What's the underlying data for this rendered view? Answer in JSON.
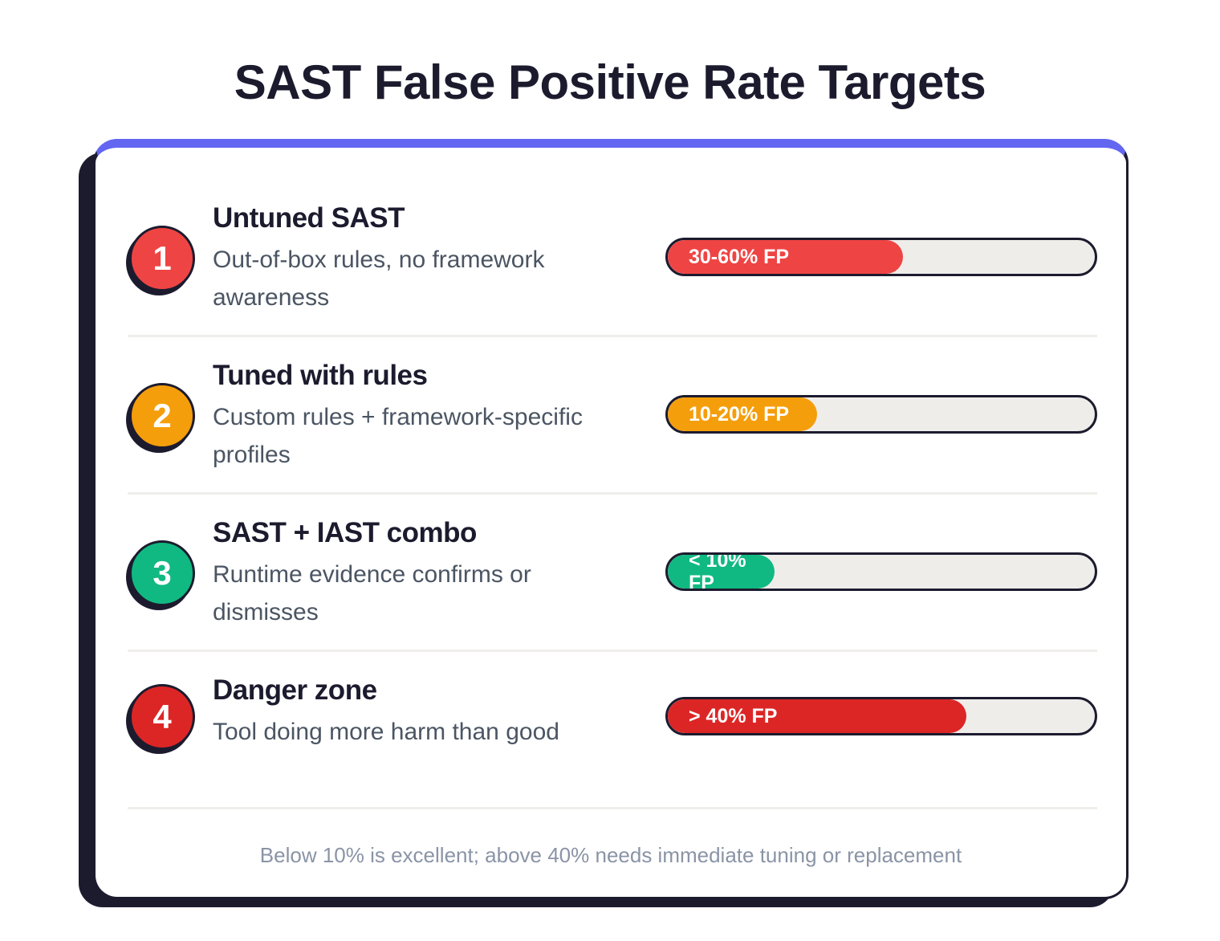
{
  "title": "SAST False Positive Rate Targets",
  "colors": {
    "accent": "#6366f1",
    "outline": "#1c1b2e",
    "track": "#efedea"
  },
  "rows": [
    {
      "number": "1",
      "title": "Untuned SAST",
      "description": "Out-of-box rules, no framework awareness",
      "bar_label": "30-60% FP",
      "fill_fraction": 0.55,
      "color": "#ef4444"
    },
    {
      "number": "2",
      "title": "Tuned with rules",
      "description": "Custom rules + framework-specific profiles",
      "bar_label": "10-20% FP",
      "fill_fraction": 0.35,
      "color": "#f59e0b"
    },
    {
      "number": "3",
      "title": "SAST + IAST combo",
      "description": "Runtime evidence confirms or dismisses",
      "bar_label": "< 10% FP",
      "fill_fraction": 0.25,
      "color": "#10b981"
    },
    {
      "number": "4",
      "title": "Danger zone",
      "description": "Tool doing more harm than good",
      "bar_label": "> 40% FP",
      "fill_fraction": 0.7,
      "color": "#dc2626"
    }
  ],
  "footer": "Below 10% is excellent; above 40% needs immediate tuning or replacement"
}
